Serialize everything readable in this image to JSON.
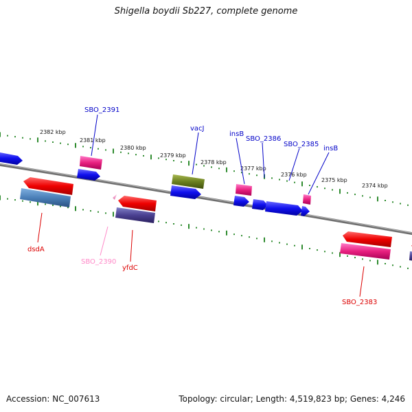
{
  "title": "Shigella boydii Sb227, complete genome",
  "footer": {
    "accession": "Accession: NC_007613",
    "topology": "Topology: circular; Length: 4,519,823 bp; Genes: 4,246"
  },
  "colors": {
    "backbone": "#808080",
    "tick": "#2e8b2e",
    "blue_label": "#0000c8",
    "red_label": "#dc0000",
    "pink_label": "#ff88c8"
  },
  "scale": {
    "outer_labels": [
      "2382 kbp",
      "2381 kbp",
      "2380 kbp",
      "2379 kbp",
      "2378 kbp",
      "2377 kbp",
      "2376 kbp",
      "2375 kbp",
      "2374 kbp"
    ]
  },
  "gene_labels": [
    {
      "name": "SBO_2391",
      "color": "blue"
    },
    {
      "name": "vacJ",
      "color": "blue"
    },
    {
      "name": "insB",
      "color": "blue"
    },
    {
      "name": "SBO_2386",
      "color": "blue"
    },
    {
      "name": "SBO_2385",
      "color": "blue"
    },
    {
      "name": "insB",
      "color": "blue"
    },
    {
      "name": "dsdA",
      "color": "red"
    },
    {
      "name": "SBO_2390",
      "color": "pink"
    },
    {
      "name": "yfdC",
      "color": "red"
    },
    {
      "name": "SBO_2383",
      "color": "red"
    }
  ]
}
